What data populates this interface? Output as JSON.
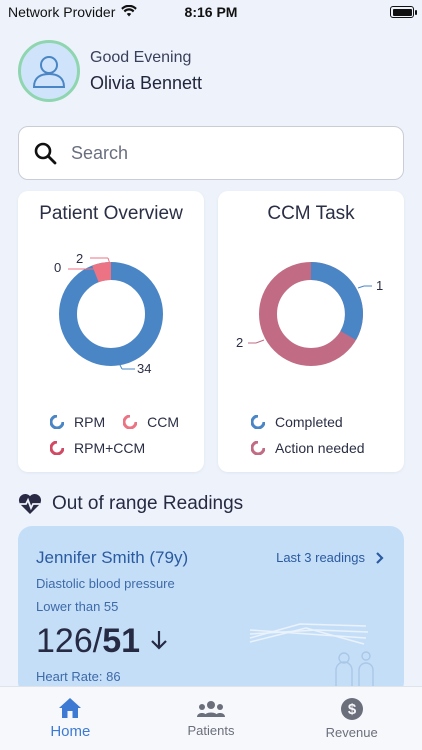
{
  "status": {
    "carrier": "Network Provider",
    "time": "8:16 PM"
  },
  "profile": {
    "greeting": "Good Evening",
    "name": "Olivia Bennett"
  },
  "search": {
    "placeholder": "Search"
  },
  "patient_overview": {
    "title": "Patient Overview",
    "labels": {
      "rpm": "34",
      "ccm": "2",
      "rpm_ccm": "0"
    },
    "legend": [
      "RPM",
      "CCM",
      "RPM+CCM"
    ],
    "colors": {
      "rpm": "#4a86c5",
      "ccm": "#ec7383",
      "rpm_ccm": "#d14a63"
    }
  },
  "ccm_task": {
    "title": "CCM Task",
    "labels": {
      "completed": "1",
      "action_needed": "2"
    },
    "legend": [
      "Completed",
      "Action needed"
    ],
    "colors": {
      "completed": "#4a86c5",
      "action_needed": "#c16b84"
    }
  },
  "out_of_range": {
    "title": "Out of range Readings",
    "patient_name": "Jennifer Smith (79y)",
    "link": "Last 3 readings",
    "metric": "Diastolic blood pressure",
    "threshold": "Lower than 55",
    "systolic": "126/",
    "diastolic": "51",
    "heart_rate": "Heart Rate: 86"
  },
  "tabs": [
    {
      "label": "Home",
      "icon": "home-icon",
      "active": true
    },
    {
      "label": "Patients",
      "icon": "patients-icon",
      "active": false
    },
    {
      "label": "Revenue",
      "icon": "dollar-icon",
      "active": false
    }
  ]
}
